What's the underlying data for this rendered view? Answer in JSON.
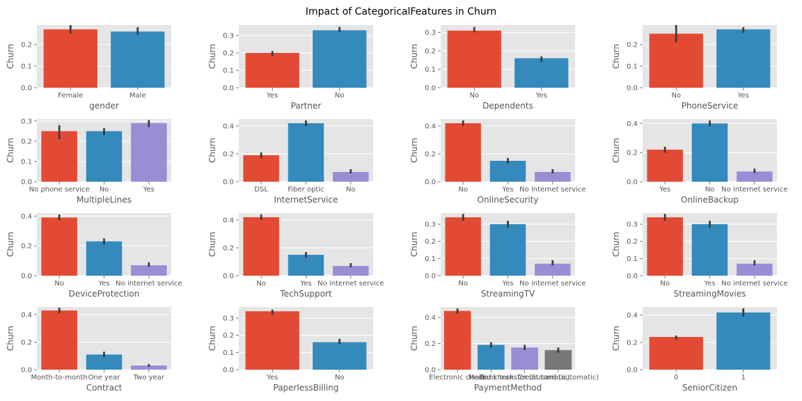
{
  "figure": {
    "title": "Impact of CategoricalFeatures in Churn"
  },
  "palette": [
    "#e24a33",
    "#348abd",
    "#988ed5",
    "#777777"
  ],
  "chart_data": [
    {
      "type": "bar",
      "xlabel": "gender",
      "ylabel": "Churn",
      "categories": [
        "Female",
        "Male"
      ],
      "values": [
        0.27,
        0.26
      ],
      "errors": [
        [
          0.25,
          0.29
        ],
        [
          0.245,
          0.28
        ]
      ],
      "yticks": [
        "0.0",
        "0.1",
        "0.2"
      ],
      "ylim": [
        0,
        0.29
      ]
    },
    {
      "type": "bar",
      "xlabel": "Partner",
      "ylabel": "Churn",
      "categories": [
        "Yes",
        "No"
      ],
      "values": [
        0.2,
        0.33
      ],
      "errors": [
        [
          0.18,
          0.21
        ],
        [
          0.32,
          0.35
        ]
      ],
      "yticks": [
        "0.0",
        "0.1",
        "0.2",
        "0.3"
      ],
      "ylim": [
        0,
        0.36
      ]
    },
    {
      "type": "bar",
      "xlabel": "Dependents",
      "ylabel": "Churn",
      "categories": [
        "No",
        "Yes"
      ],
      "values": [
        0.31,
        0.16
      ],
      "errors": [
        [
          0.3,
          0.33
        ],
        [
          0.14,
          0.17
        ]
      ],
      "yticks": [
        "0.0",
        "0.1",
        "0.2",
        "0.3"
      ],
      "ylim": [
        0,
        0.34
      ]
    },
    {
      "type": "bar",
      "xlabel": "PhoneService",
      "ylabel": "Churn",
      "categories": [
        "No",
        "Yes"
      ],
      "values": [
        0.25,
        0.27
      ],
      "errors": [
        [
          0.21,
          0.29
        ],
        [
          0.255,
          0.28
        ]
      ],
      "yticks": [
        "0.0",
        "0.1",
        "0.2"
      ],
      "ylim": [
        0,
        0.29
      ]
    },
    {
      "type": "bar",
      "xlabel": "MultipleLines",
      "ylabel": "Churn",
      "categories": [
        "No phone service",
        "No",
        "Yes"
      ],
      "values": [
        0.25,
        0.25,
        0.29
      ],
      "errors": [
        [
          0.21,
          0.28
        ],
        [
          0.23,
          0.265
        ],
        [
          0.27,
          0.305
        ]
      ],
      "yticks": [
        "0.0",
        "0.1",
        "0.2",
        "0.3"
      ],
      "ylim": [
        0,
        0.31
      ]
    },
    {
      "type": "bar",
      "xlabel": "InternetService",
      "ylabel": "Churn",
      "categories": [
        "DSL",
        "Fiber optic",
        "No"
      ],
      "values": [
        0.19,
        0.42,
        0.07
      ],
      "errors": [
        [
          0.17,
          0.21
        ],
        [
          0.4,
          0.44
        ],
        [
          0.06,
          0.09
        ]
      ],
      "yticks": [
        "0.0",
        "0.2",
        "0.4"
      ],
      "ylim": [
        0,
        0.45
      ]
    },
    {
      "type": "bar",
      "xlabel": "OnlineSecurity",
      "ylabel": "Churn",
      "categories": [
        "No",
        "Yes",
        "No internet service"
      ],
      "values": [
        0.42,
        0.15,
        0.07
      ],
      "errors": [
        [
          0.4,
          0.44
        ],
        [
          0.13,
          0.17
        ],
        [
          0.06,
          0.09
        ]
      ],
      "yticks": [
        "0.0",
        "0.2",
        "0.4"
      ],
      "ylim": [
        0,
        0.45
      ]
    },
    {
      "type": "bar",
      "xlabel": "OnlineBackup",
      "ylabel": "Churn",
      "categories": [
        "Yes",
        "No",
        "No internet service"
      ],
      "values": [
        0.22,
        0.4,
        0.07
      ],
      "errors": [
        [
          0.2,
          0.24
        ],
        [
          0.38,
          0.42
        ],
        [
          0.06,
          0.09
        ]
      ],
      "yticks": [
        "0.0",
        "0.2",
        "0.4"
      ],
      "ylim": [
        0,
        0.43
      ]
    },
    {
      "type": "bar",
      "xlabel": "DeviceProtection",
      "ylabel": "Churn",
      "categories": [
        "No",
        "Yes",
        "No internet service"
      ],
      "values": [
        0.39,
        0.23,
        0.07
      ],
      "errors": [
        [
          0.37,
          0.41
        ],
        [
          0.21,
          0.25
        ],
        [
          0.06,
          0.09
        ]
      ],
      "yticks": [
        "0.0",
        "0.2",
        "0.4"
      ],
      "ylim": [
        0,
        0.42
      ]
    },
    {
      "type": "bar",
      "xlabel": "TechSupport",
      "ylabel": "Churn",
      "categories": [
        "No",
        "Yes",
        "No internet service"
      ],
      "values": [
        0.42,
        0.15,
        0.07
      ],
      "errors": [
        [
          0.4,
          0.44
        ],
        [
          0.13,
          0.17
        ],
        [
          0.06,
          0.09
        ]
      ],
      "yticks": [
        "0.0",
        "0.2",
        "0.4"
      ],
      "ylim": [
        0,
        0.45
      ]
    },
    {
      "type": "bar",
      "xlabel": "StreamingTV",
      "ylabel": "Churn",
      "categories": [
        "No",
        "Yes",
        "No internet service"
      ],
      "values": [
        0.34,
        0.3,
        0.07
      ],
      "errors": [
        [
          0.32,
          0.36
        ],
        [
          0.28,
          0.32
        ],
        [
          0.06,
          0.09
        ]
      ],
      "yticks": [
        "0.0",
        "0.1",
        "0.2",
        "0.3"
      ],
      "ylim": [
        0,
        0.365
      ]
    },
    {
      "type": "bar",
      "xlabel": "StreamingMovies",
      "ylabel": "Churn",
      "categories": [
        "No",
        "Yes",
        "No internet service"
      ],
      "values": [
        0.34,
        0.3,
        0.07
      ],
      "errors": [
        [
          0.32,
          0.36
        ],
        [
          0.28,
          0.32
        ],
        [
          0.06,
          0.09
        ]
      ],
      "yticks": [
        "0.0",
        "0.1",
        "0.2",
        "0.3"
      ],
      "ylim": [
        0,
        0.365
      ]
    },
    {
      "type": "bar",
      "xlabel": "Contract",
      "ylabel": "Churn",
      "categories": [
        "Month-to-month",
        "One year",
        "Two year"
      ],
      "values": [
        0.43,
        0.11,
        0.03
      ],
      "errors": [
        [
          0.41,
          0.45
        ],
        [
          0.09,
          0.13
        ],
        [
          0.02,
          0.04
        ]
      ],
      "yticks": [
        "0.0",
        "0.2",
        "0.4"
      ],
      "ylim": [
        0,
        0.455
      ]
    },
    {
      "type": "bar",
      "xlabel": "PaperlessBilling",
      "ylabel": "Churn",
      "categories": [
        "Yes",
        "No"
      ],
      "values": [
        0.34,
        0.16
      ],
      "errors": [
        [
          0.32,
          0.35
        ],
        [
          0.15,
          0.18
        ]
      ],
      "yticks": [
        "0.0",
        "0.1",
        "0.2",
        "0.3"
      ],
      "ylim": [
        0,
        0.365
      ]
    },
    {
      "type": "bar",
      "xlabel": "PaymentMethod",
      "ylabel": "Churn",
      "categories": [
        "Electronic check",
        "Mailed check",
        "Bank transfer (automatic)",
        "Credit card (automatic)"
      ],
      "values": [
        0.45,
        0.19,
        0.17,
        0.15
      ],
      "errors": [
        [
          0.43,
          0.47
        ],
        [
          0.17,
          0.21
        ],
        [
          0.15,
          0.19
        ],
        [
          0.13,
          0.17
        ]
      ],
      "yticks": [
        "0.0",
        "0.2",
        "0.4"
      ],
      "ylim": [
        0,
        0.48
      ]
    },
    {
      "type": "bar",
      "xlabel": "SeniorCitizen",
      "ylabel": "Churn",
      "categories": [
        "0",
        "1"
      ],
      "values": [
        0.24,
        0.42
      ],
      "errors": [
        [
          0.22,
          0.25
        ],
        [
          0.39,
          0.45
        ]
      ],
      "yticks": [
        "0.0",
        "0.2",
        "0.4"
      ],
      "ylim": [
        0,
        0.46
      ]
    }
  ]
}
